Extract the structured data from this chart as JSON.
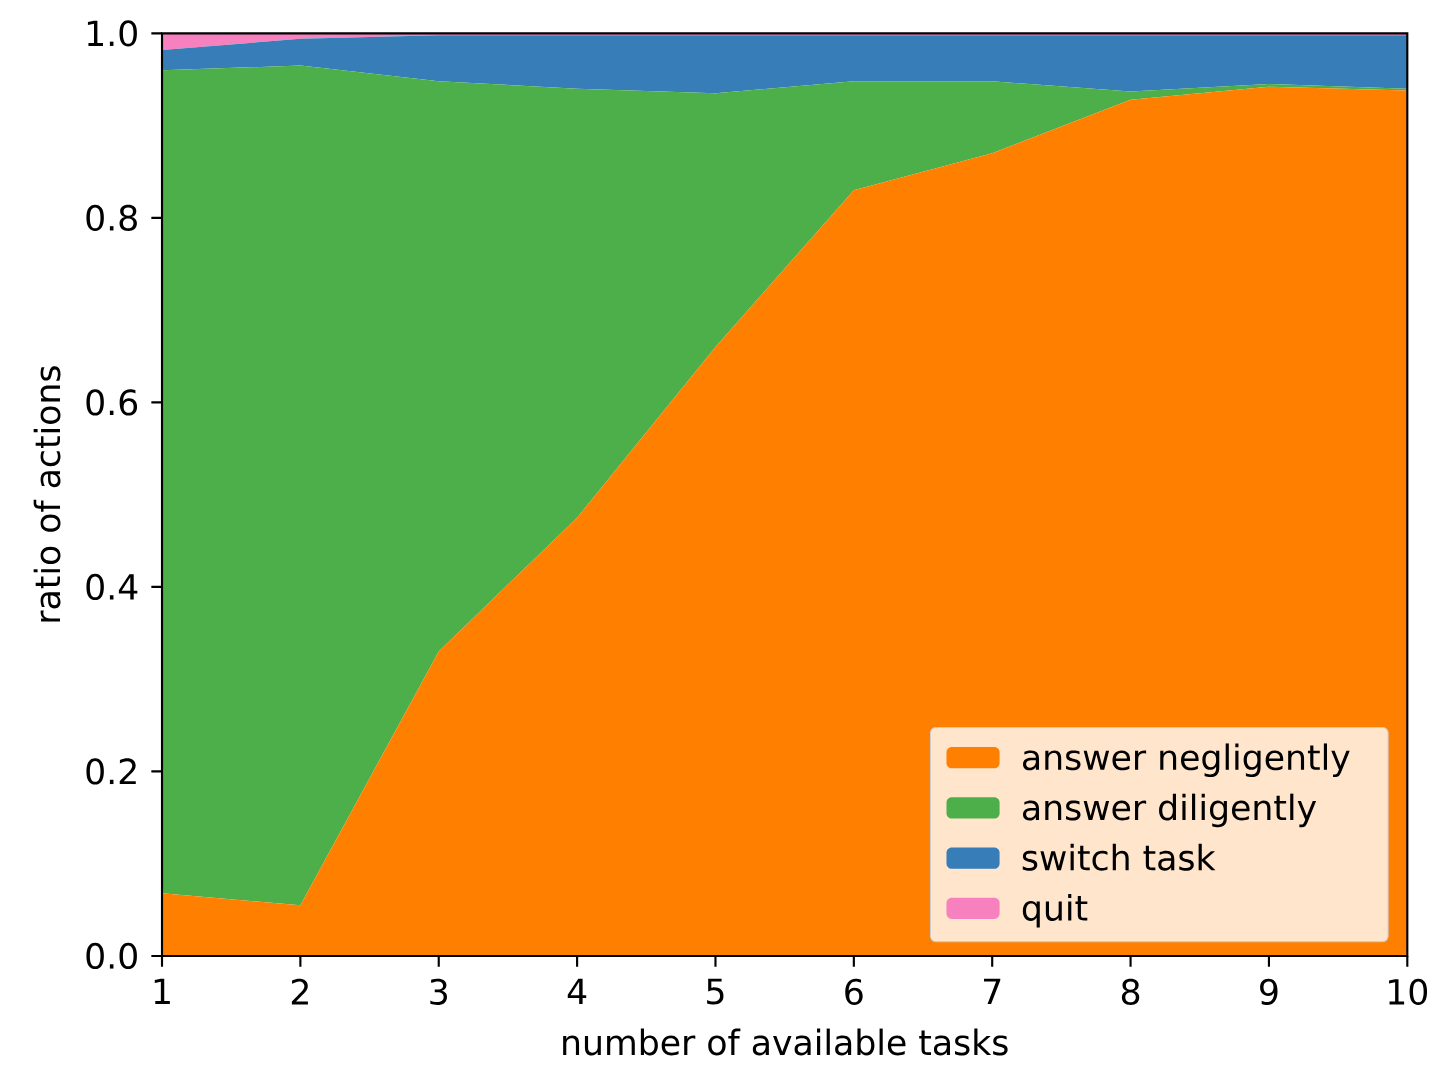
{
  "chart_data": {
    "type": "area",
    "stacked": true,
    "xlabel": "number of available tasks",
    "ylabel": "ratio of actions",
    "x": [
      1,
      2,
      3,
      4,
      5,
      6,
      7,
      8,
      9,
      10
    ],
    "series": [
      {
        "name": "answer negligently",
        "color": "#ff7f00",
        "values": [
          0.068,
          0.055,
          0.33,
          0.475,
          0.66,
          0.83,
          0.87,
          0.928,
          0.942,
          0.938
        ]
      },
      {
        "name": "answer diligently",
        "color": "#4daf4a",
        "values": [
          0.892,
          0.91,
          0.618,
          0.465,
          0.275,
          0.118,
          0.078,
          0.009,
          0.003,
          0.002
        ]
      },
      {
        "name": "switch task",
        "color": "#377eb8",
        "values": [
          0.022,
          0.029,
          0.05,
          0.058,
          0.063,
          0.05,
          0.05,
          0.061,
          0.053,
          0.058
        ]
      },
      {
        "name": "quit",
        "color": "#f781bf",
        "values": [
          0.018,
          0.006,
          0.002,
          0.002,
          0.002,
          0.002,
          0.002,
          0.002,
          0.002,
          0.002
        ]
      }
    ],
    "xlim": [
      1,
      10
    ],
    "ylim": [
      0,
      1
    ],
    "xticks": [
      1,
      2,
      3,
      4,
      5,
      6,
      7,
      8,
      9,
      10
    ],
    "yticks": [
      {
        "value": 0,
        "label": "0.0"
      },
      {
        "value": 0.2,
        "label": "0.2"
      },
      {
        "value": 0.4,
        "label": "0.4"
      },
      {
        "value": 0.6,
        "label": "0.6"
      },
      {
        "value": 0.8,
        "label": "0.8"
      },
      {
        "value": 1,
        "label": "1.0"
      }
    ],
    "grid": false,
    "legend": "bottom right"
  }
}
